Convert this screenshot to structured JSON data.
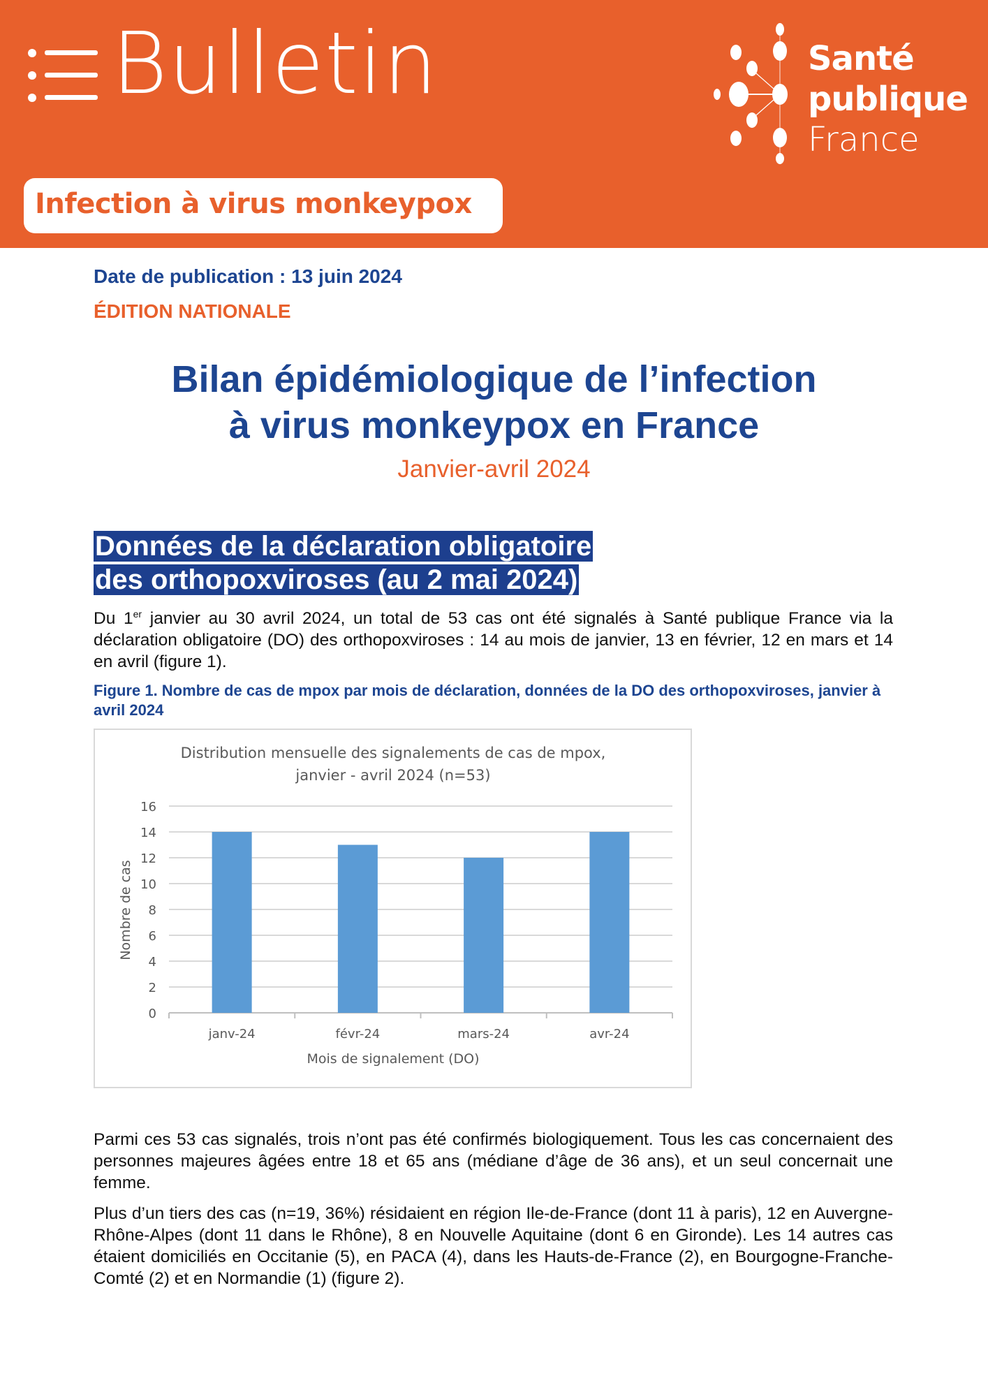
{
  "header": {
    "bulletin_label": "Bulletin",
    "topic_pill": "Infection à virus monkeypox",
    "logo": {
      "line1": "Santé",
      "line2": "publique",
      "line3": "France"
    },
    "colors": {
      "orange": "#e8602c",
      "blue": "#1d4591",
      "bar": "#5b9bd5"
    }
  },
  "meta": {
    "publication_date": "Date de publication : 13 juin 2024",
    "edition": "ÉDITION NATIONALE"
  },
  "title": {
    "line1": "Bilan épidémiologique de l’infection",
    "line2": "à virus monkeypox en France",
    "subtitle": "Janvier-avril 2024"
  },
  "section": {
    "heading_line1": "Données de la déclaration obligatoire",
    "heading_line2": "des orthopoxviroses (au 2 mai 2024)",
    "para1_a": "Du 1",
    "para1_sup": "er",
    "para1_b": " janvier au 30 avril 2024, un total de 53 cas ont été signalés à Santé publique France via la déclaration obligatoire (DO) des orthopoxviroses : 14 au mois de janvier, 13 en février, 12 en mars et 14 en avril (figure 1).",
    "figure_caption": "Figure 1. Nombre de cas de mpox par mois de déclaration, données de la DO des orthopoxviroses, janvier à avril 2024",
    "para2": "Parmi ces 53 cas signalés, trois n’ont pas été confirmés biologiquement. Tous les cas concernaient des personnes majeures âgées entre 18 et 65 ans (médiane d’âge de 36 ans), et un seul concernait une femme.",
    "para3": "Plus d’un tiers des cas (n=19, 36%) résidaient en région Ile-de-France (dont 11 à paris), 12 en Auvergne-Rhône-Alpes (dont 11 dans le Rhône), 8 en Nouvelle Aquitaine (dont 6 en Gironde). Les 14 autres cas étaient domiciliés en Occitanie (5), en PACA (4), dans les Hauts-de-France (2), en Bourgogne-Franche-Comté (2) et en Normandie (1) (figure 2)."
  },
  "chart_data": {
    "type": "bar",
    "title_line1": "Distribution mensuelle des signalements de cas de mpox,",
    "title_line2": "janvier - avril 2024 (n=53)",
    "categories": [
      "janv-24",
      "févr-24",
      "mars-24",
      "avr-24"
    ],
    "values": [
      14,
      13,
      12,
      14
    ],
    "xlabel": "Mois de signalement (DO)",
    "ylabel": "Nombre de cas",
    "ylim": [
      0,
      16
    ],
    "yticks": [
      "0",
      "2",
      "4",
      "6",
      "8",
      "10",
      "12",
      "14",
      "16"
    ],
    "grid": true
  }
}
